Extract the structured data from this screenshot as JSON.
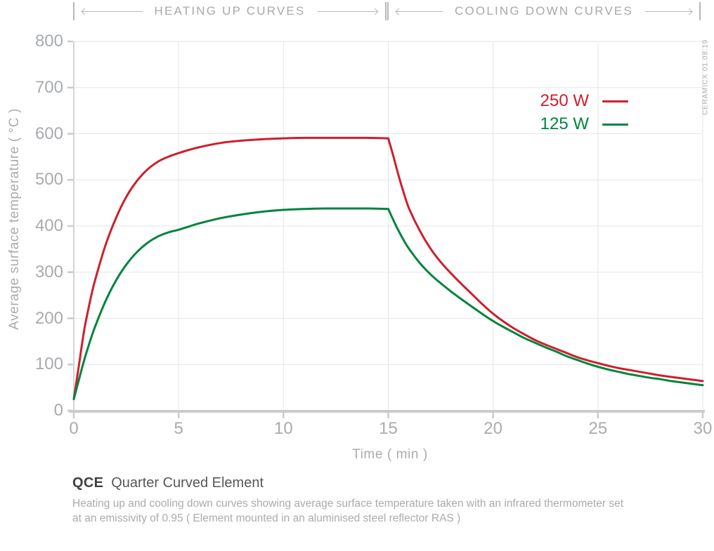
{
  "header": {
    "sections": [
      {
        "label": "HEATING UP CURVES"
      },
      {
        "label": "COOLING DOWN CURVES"
      }
    ]
  },
  "watermark": "CERAMICX 01.08.19",
  "chart_data": {
    "type": "line",
    "title": "",
    "xlabel": "Time ( min )",
    "ylabel": "Average surface temperature ( °C )",
    "xlim": [
      0,
      30
    ],
    "ylim": [
      0,
      800
    ],
    "xticks": [
      0,
      5,
      10,
      15,
      20,
      25,
      30
    ],
    "yticks": [
      0,
      100,
      200,
      300,
      400,
      500,
      600,
      700,
      800
    ],
    "grid": true,
    "legend_position": "upper right",
    "annotations": [
      "HEATING UP CURVES span 0-15 min",
      "COOLING DOWN CURVES span 15-30 min"
    ],
    "series": [
      {
        "name": "250 W",
        "color": "#cd1f2d",
        "heating": [
          [
            0,
            25
          ],
          [
            0.25,
            100
          ],
          [
            0.5,
            175
          ],
          [
            0.75,
            232
          ],
          [
            1,
            280
          ],
          [
            1.5,
            357
          ],
          [
            2,
            416
          ],
          [
            2.5,
            463
          ],
          [
            3,
            497
          ],
          [
            3.5,
            522
          ],
          [
            4,
            539
          ],
          [
            4.5,
            550
          ],
          [
            5,
            558
          ],
          [
            5.5,
            565
          ],
          [
            6,
            571
          ],
          [
            7,
            580
          ],
          [
            8,
            585
          ],
          [
            9,
            588
          ],
          [
            10,
            590
          ],
          [
            11,
            591
          ],
          [
            12,
            591
          ],
          [
            13,
            591
          ],
          [
            14,
            591
          ],
          [
            15,
            590
          ]
        ],
        "cooling": [
          [
            15,
            590
          ],
          [
            15.25,
            550
          ],
          [
            15.5,
            508
          ],
          [
            15.75,
            470
          ],
          [
            16,
            437
          ],
          [
            16.5,
            390
          ],
          [
            17,
            352
          ],
          [
            17.5,
            322
          ],
          [
            18,
            297
          ],
          [
            18.5,
            274
          ],
          [
            19,
            252
          ],
          [
            19.5,
            230
          ],
          [
            20,
            210
          ],
          [
            20.5,
            193
          ],
          [
            21,
            178
          ],
          [
            21.5,
            165
          ],
          [
            22,
            153
          ],
          [
            22.5,
            143
          ],
          [
            23,
            134
          ],
          [
            23.5,
            125
          ],
          [
            24,
            116
          ],
          [
            24.5,
            109
          ],
          [
            25,
            103
          ],
          [
            25.5,
            97
          ],
          [
            26,
            92
          ],
          [
            26.5,
            88
          ],
          [
            27,
            84
          ],
          [
            27.5,
            80
          ],
          [
            28,
            76
          ],
          [
            28.5,
            73
          ],
          [
            29,
            70
          ],
          [
            29.5,
            67
          ],
          [
            30,
            64
          ]
        ]
      },
      {
        "name": "125 W",
        "color": "#00843d",
        "heating": [
          [
            0,
            25
          ],
          [
            0.25,
            68
          ],
          [
            0.5,
            110
          ],
          [
            0.75,
            147
          ],
          [
            1,
            180
          ],
          [
            1.5,
            236
          ],
          [
            2,
            281
          ],
          [
            2.5,
            316
          ],
          [
            3,
            343
          ],
          [
            3.5,
            363
          ],
          [
            4,
            377
          ],
          [
            4.5,
            386
          ],
          [
            5,
            392
          ],
          [
            5.5,
            399
          ],
          [
            6,
            406
          ],
          [
            7,
            417
          ],
          [
            8,
            425
          ],
          [
            9,
            431
          ],
          [
            10,
            435
          ],
          [
            11,
            437
          ],
          [
            12,
            438
          ],
          [
            13,
            438
          ],
          [
            14,
            438
          ],
          [
            15,
            437
          ]
        ],
        "cooling": [
          [
            15,
            437
          ],
          [
            15.25,
            412
          ],
          [
            15.5,
            389
          ],
          [
            15.75,
            368
          ],
          [
            16,
            350
          ],
          [
            16.5,
            320
          ],
          [
            17,
            296
          ],
          [
            17.5,
            276
          ],
          [
            18,
            258
          ],
          [
            18.5,
            241
          ],
          [
            19,
            225
          ],
          [
            19.5,
            209
          ],
          [
            20,
            194
          ],
          [
            20.5,
            181
          ],
          [
            21,
            169
          ],
          [
            21.5,
            157
          ],
          [
            22,
            147
          ],
          [
            22.5,
            137
          ],
          [
            23,
            128
          ],
          [
            23.5,
            118
          ],
          [
            24,
            110
          ],
          [
            24.5,
            102
          ],
          [
            25,
            95
          ],
          [
            25.5,
            89
          ],
          [
            26,
            84
          ],
          [
            26.5,
            79
          ],
          [
            27,
            75
          ],
          [
            27.5,
            71
          ],
          [
            28,
            68
          ],
          [
            28.5,
            64
          ],
          [
            29,
            61
          ],
          [
            29.5,
            58
          ],
          [
            30,
            55
          ]
        ]
      }
    ]
  },
  "legend": {
    "items": [
      {
        "label": "250 W",
        "color": "#cd1f2d"
      },
      {
        "label": "125 W",
        "color": "#00843d"
      }
    ]
  },
  "footer": {
    "product_code": "QCE",
    "product_name": "Quarter Curved Element",
    "description_line1": "Heating up and cooling down curves showing average surface temperature taken with an infrared thermometer set",
    "description_line2": "at an emissivity of 0.95  ( Element mounted in an aluminised steel reflector RAS )"
  },
  "colors": {
    "red": "#cd1f2d",
    "green": "#00843d",
    "grid": "#e4e5e7",
    "axis": "#c9cbcd",
    "axis_light": "#d2d4d6",
    "muted_text": "#a8abae",
    "dark_text": "#414042"
  }
}
